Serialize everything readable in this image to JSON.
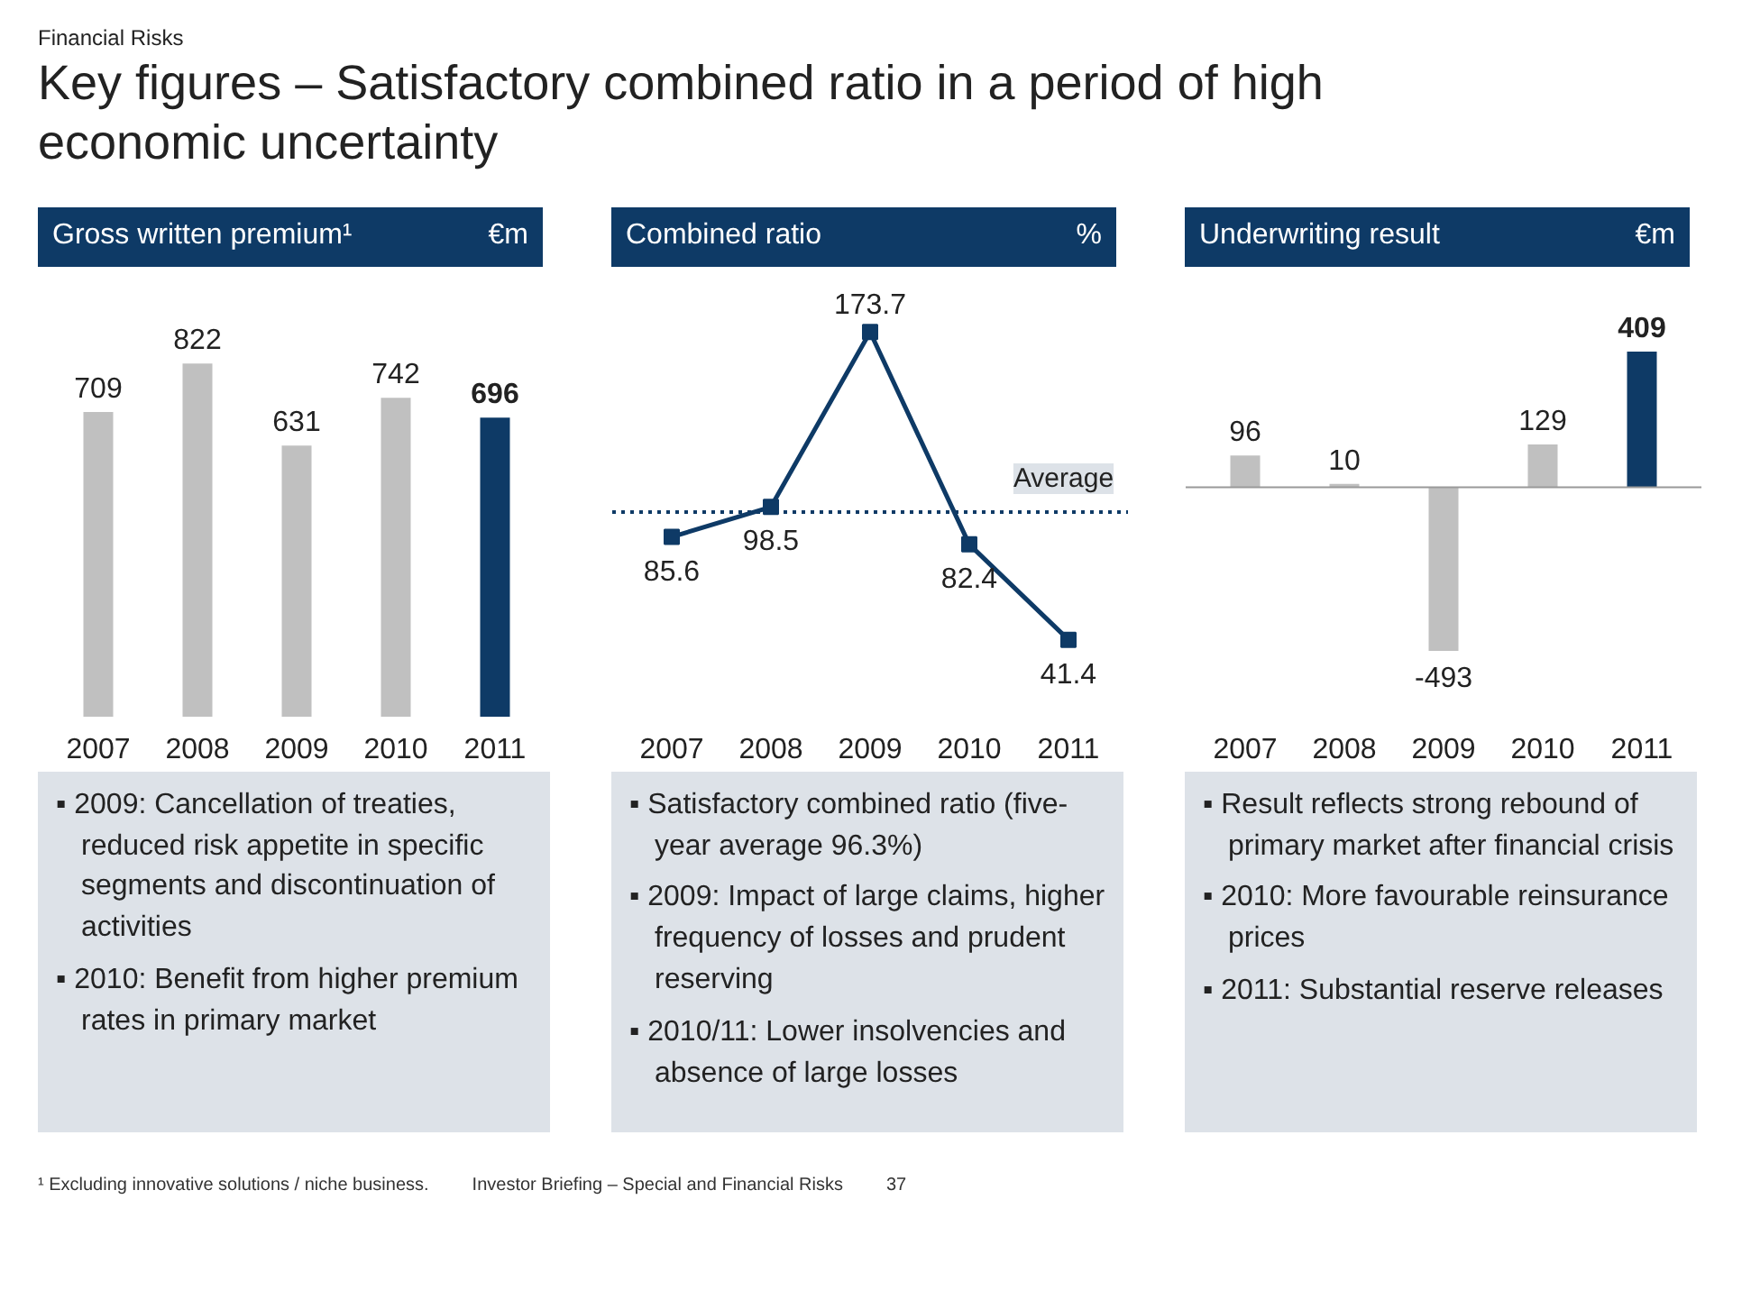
{
  "chart_data": [
    {
      "type": "other",
      "subtitle": "Financial Risks",
      "title": "Key figures – Satisfactory combined ratio in a period of high economic uncertainty"
    },
    {
      "type": "bar",
      "title": "Gross written premium¹",
      "ylabel": "€m",
      "categories": [
        "2007",
        "2008",
        "2009",
        "2010",
        "2011"
      ],
      "values": [
        709,
        822,
        631,
        742,
        696
      ],
      "colors": [
        "#c0c0c0",
        "#c0c0c0",
        "#c0c0c0",
        "#c0c0c0",
        "#0e3a66"
      ],
      "data_labels": true,
      "annotations": [
        "▪ 2009: Cancellation of treaties, reduced risk appetite in specific segments and discontinuation of activities",
        "▪ 2010: Benefit from higher premium rates in primary market"
      ]
    },
    {
      "type": "line",
      "title": "Combined ratio",
      "ylabel": "%",
      "categories": [
        "2007",
        "2008",
        "2009",
        "2010",
        "2011"
      ],
      "marker": "square",
      "line_style": "solid",
      "data_labels": true,
      "series": [
        {
          "color": "#0e3a66",
          "values": [
            85.6,
            98.5,
            173.7,
            82.4,
            41.4
          ]
        }
      ],
      "ref_lines": [
        {
          "axis": "y",
          "value": 96.3,
          "label": "Average",
          "line_style": "dotted",
          "color": "#0e3a66"
        }
      ],
      "annotations": [
        "▪ Satisfactory combined ratio (five-year average 96.3%)",
        "▪ 2009: Impact of large claims, higher frequency of losses and prudent reserving",
        "▪ 2010/11: Lower insolvencies and absence of large losses"
      ]
    },
    {
      "type": "bar",
      "title": "Underwriting result",
      "ylabel": "€m",
      "categories": [
        "2007",
        "2008",
        "2009",
        "2010",
        "2011"
      ],
      "values": [
        96,
        10,
        -493,
        129,
        409
      ],
      "colors": [
        "#c0c0c0",
        "#c0c0c0",
        "#c0c0c0",
        "#c0c0c0",
        "#0e3a66"
      ],
      "data_labels": true,
      "annotations": [
        "▪ Result reflects strong rebound of primary market after financial crisis",
        "▪ 2010: More favourable reinsurance prices",
        "▪ 2011: Substantial reserve releases"
      ]
    },
    {
      "type": "other",
      "annotations": [
        "¹ Excluding innovative solutions / niche business.",
        "Investor Briefing – Special and Financial Risks",
        "37"
      ]
    }
  ]
}
